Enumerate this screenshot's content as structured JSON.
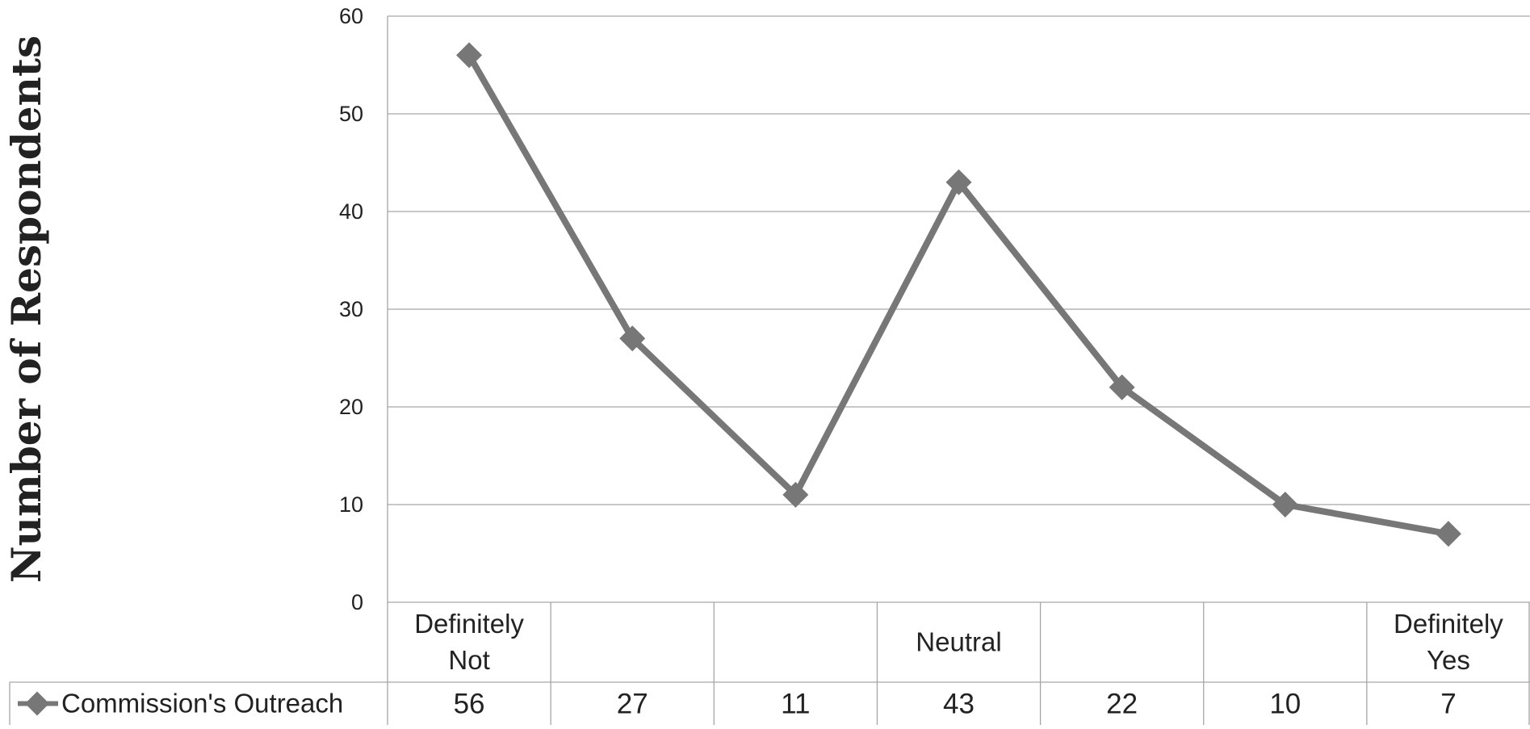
{
  "chart_data": {
    "type": "line",
    "categories": [
      "Definitely\nNot",
      "",
      "",
      "Neutral",
      "",
      "",
      "Definitely\nYes"
    ],
    "series": [
      {
        "name": "Commission's Outreach",
        "values": [
          56,
          27,
          11,
          43,
          22,
          10,
          7
        ]
      }
    ],
    "ylabel": "Number of Respondents",
    "xlabel": "",
    "ylim": [
      0,
      60
    ],
    "yticks": [
      0,
      10,
      20,
      30,
      40,
      50,
      60
    ],
    "grid": true,
    "data_table": true,
    "series_color": "#777777",
    "grid_color": "#a6a6a6"
  }
}
